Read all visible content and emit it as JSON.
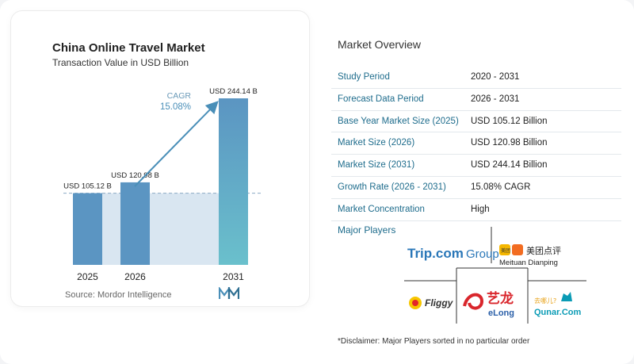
{
  "chart": {
    "title": "China Online Travel Market",
    "subtitle": "Transaction Value in USD Billion",
    "source": "Source:  Mordor Intelligence",
    "cagr_label": "CAGR",
    "cagr_value": "15.08%"
  },
  "chart_data": {
    "type": "bar",
    "categories": [
      "2025",
      "2026",
      "2031"
    ],
    "values": [
      105.12,
      120.98,
      244.14
    ],
    "value_labels": [
      "USD 105.12 B",
      "USD 120.98 B",
      "USD 244.14 B"
    ],
    "title": "China Online Travel Market",
    "subtitle": "Transaction Value in USD Billion",
    "xlabel": "",
    "ylabel": "",
    "ylim": [
      0,
      260
    ],
    "annotation": "CAGR 15.08%",
    "bar_color": "#5b95c2",
    "highlight_color": "#6ac0cc",
    "grid": false
  },
  "overview": {
    "title": "Market Overview",
    "rows": [
      {
        "label": "Study Period",
        "value": "2020 - 2031"
      },
      {
        "label": "Forecast Data Period",
        "value": "2026 - 2031"
      },
      {
        "label": "Base Year Market Size (2025)",
        "value": "USD 105.12 Billion"
      },
      {
        "label": "Market Size (2026)",
        "value": "USD 120.98 Billion"
      },
      {
        "label": "Market Size (2031)",
        "value": "USD 244.14 Billion"
      },
      {
        "label": "Growth Rate (2026 - 2031)",
        "value": "15.08% CAGR"
      },
      {
        "label": "Market Concentration",
        "value": "High"
      }
    ],
    "players_title": "Major Players",
    "players": [
      "Trip.com Group",
      "Meituan Dianping",
      "Fliggy",
      "eLong",
      "Qunar.Com"
    ],
    "player_text": {
      "trip_main": "Trip.com",
      "trip_group": "Group",
      "meituan_cn": "美团点评",
      "meituan_en": "Meituan Dianping",
      "meituan_badge": "美团",
      "fliggy": "Fliggy",
      "elong_cn": "艺龙",
      "elong_en": "eLong",
      "qunar_cn": "去哪儿?",
      "qunar_en": "Qunar.Com"
    },
    "disclaimer": "*Disclaimer: Major Players sorted in no particular order"
  },
  "colors": {
    "accent": "#1e6c8c",
    "bar": "#5b95c2",
    "bar_highlight": "#6ac0cc",
    "band": "#d9e6f1"
  }
}
